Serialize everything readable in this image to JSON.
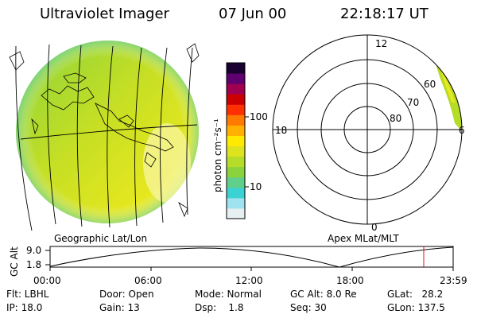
{
  "header": {
    "title": "Ultraviolet Imager",
    "date": "07 Jun 00",
    "time": "22:18:17 UT"
  },
  "geo_panel": {
    "label": "Geographic Lat/Lon"
  },
  "polar_panel": {
    "label": "Apex MLat/MLT",
    "mlt_labels": [
      "12",
      "18",
      "6",
      "0"
    ],
    "lat_labels": [
      "60",
      "70",
      "80"
    ]
  },
  "colorbar": {
    "unit_label": "photon cm⁻²s⁻¹",
    "ticks": [
      "100",
      "10"
    ],
    "colors": [
      "#e6f0f0",
      "#9fe3f0",
      "#3cd2d2",
      "#5fcf8a",
      "#8ad33c",
      "#b5dc28",
      "#dde31e",
      "#ffea00",
      "#ffb000",
      "#ff7a00",
      "#ff3000",
      "#cc0000",
      "#a00050",
      "#600070",
      "#1a0030"
    ]
  },
  "altitude": {
    "axis_label": "GC Alt",
    "y_ticks": [
      "9.0",
      "1.8"
    ],
    "x_ticks": [
      "00:00",
      "06:00",
      "12:00",
      "18:00",
      "23:59"
    ],
    "current_marker_time": "22:18"
  },
  "info": {
    "flt": "Flt: LBHL",
    "ip": "IP: 18.0",
    "door": "Door: Open",
    "gain": "Gain: 13",
    "mode": "Mode: Normal",
    "dsp": "Dsp:    1.8",
    "gcalt": "GC Alt: 8.0 Re",
    "seq": "Seq: 30",
    "glat": "GLat:   28.2",
    "glon": "GLon: 137.5"
  }
}
